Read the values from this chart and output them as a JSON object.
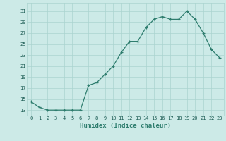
{
  "x": [
    0,
    1,
    2,
    3,
    4,
    5,
    6,
    7,
    8,
    9,
    10,
    11,
    12,
    13,
    14,
    15,
    16,
    17,
    18,
    19,
    20,
    21,
    22,
    23
  ],
  "y": [
    14.5,
    13.5,
    13.0,
    13.0,
    13.0,
    13.0,
    13.0,
    17.5,
    18.0,
    19.5,
    21.0,
    23.5,
    25.5,
    25.5,
    28.0,
    29.5,
    30.0,
    29.5,
    29.5,
    31.0,
    29.5,
    27.0,
    24.0,
    22.5
  ],
  "line_color": "#2e7d6e",
  "marker": "+",
  "bg_color": "#cceae7",
  "grid_color": "#aad4cf",
  "xlabel": "Humidex (Indice chaleur)",
  "yticks": [
    13,
    15,
    17,
    19,
    21,
    23,
    25,
    27,
    29,
    31
  ],
  "ylim": [
    12.0,
    32.5
  ],
  "xlim": [
    -0.5,
    23.5
  ]
}
